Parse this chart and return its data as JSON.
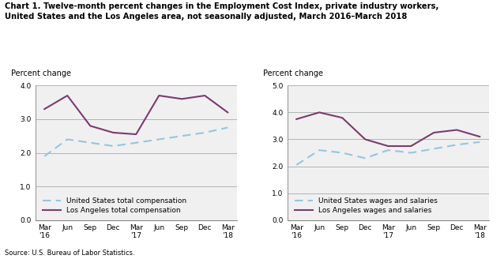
{
  "title_line1": "Chart 1. Twelve-month percent changes in the Employment Cost Index, private industry workers,",
  "title_line2": "United States and the Los Angeles area, not seasonally adjusted, March 2016–March 2018",
  "source": "Source: U.S. Bureau of Labor Statistics.",
  "ylabel": "Percent change",
  "x_labels": [
    "Mar\n'16",
    "Jun",
    "Sep",
    "Dec",
    "Mar\n'17",
    "Jun",
    "Sep",
    "Dec",
    "Mar\n'18"
  ],
  "x_positions": [
    0,
    1,
    2,
    3,
    4,
    5,
    6,
    7,
    8
  ],
  "left_chart": {
    "us_total_comp": [
      1.9,
      2.4,
      2.3,
      2.2,
      2.3,
      2.4,
      2.5,
      2.6,
      2.75
    ],
    "la_total_comp": [
      3.3,
      3.7,
      2.8,
      2.6,
      2.55,
      3.7,
      3.6,
      3.7,
      3.2
    ],
    "ylim": [
      0.0,
      4.0
    ],
    "yticks": [
      0.0,
      1.0,
      2.0,
      3.0,
      4.0
    ],
    "legend1": "United States total compensation",
    "legend2": "Los Angeles total compensation"
  },
  "right_chart": {
    "us_wages_sal": [
      2.05,
      2.6,
      2.5,
      2.3,
      2.6,
      2.5,
      2.65,
      2.8,
      2.9
    ],
    "la_wages_sal": [
      3.75,
      4.0,
      3.8,
      3.0,
      2.75,
      2.75,
      3.25,
      3.35,
      3.1
    ],
    "ylim": [
      0.0,
      5.0
    ],
    "yticks": [
      0.0,
      1.0,
      2.0,
      3.0,
      4.0,
      5.0
    ],
    "legend1": "United States wages and salaries",
    "legend2": "Los Angeles wages and salaries"
  },
  "us_color": "#94C6E0",
  "la_color": "#7B3B6E",
  "linewidth": 1.5,
  "grid_color": "#AAAAAA",
  "bg_color": "#F0F0F0",
  "title_fontsize": 7.2,
  "label_fontsize": 7.0,
  "tick_fontsize": 6.5,
  "legend_fontsize": 6.5
}
